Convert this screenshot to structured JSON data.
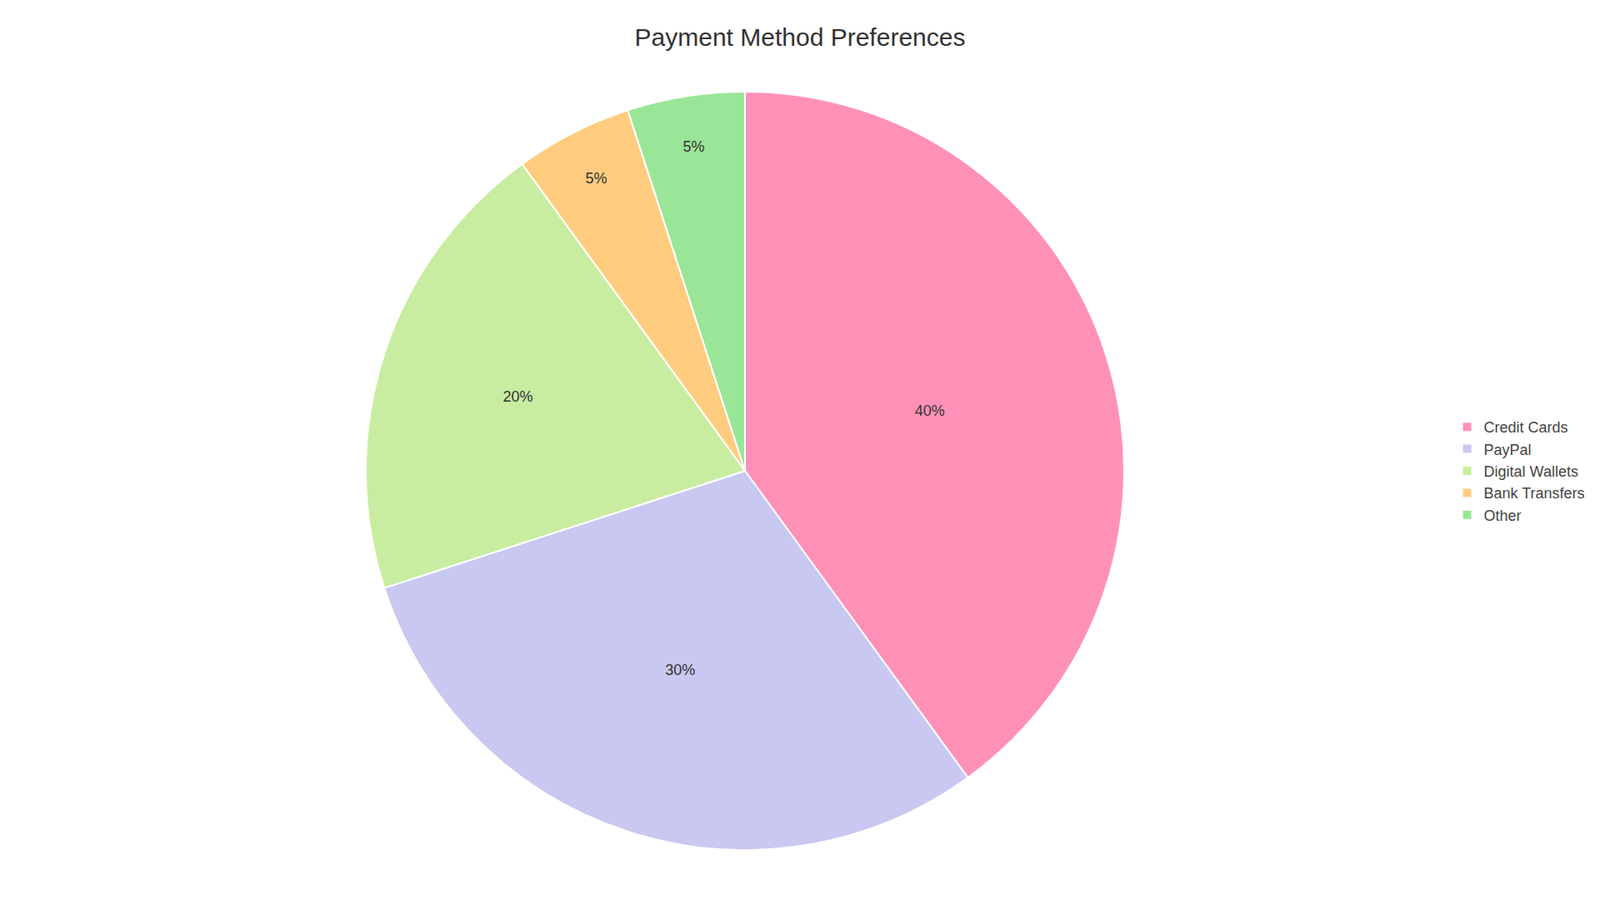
{
  "chart_data": {
    "type": "pie",
    "title": "Payment Method Preferences",
    "categories": [
      "Credit Cards",
      "PayPal",
      "Digital Wallets",
      "Bank Transfers",
      "Other"
    ],
    "values": [
      40,
      30,
      20,
      5,
      5
    ],
    "value_labels": [
      "40%",
      "30%",
      "20%",
      "5%",
      "5%"
    ],
    "colors": [
      "#FF91B8",
      "#C8C8F0",
      "#C8EDA0",
      "#FFCC80",
      "#99E699"
    ],
    "data_labels": true,
    "legend": "right"
  }
}
